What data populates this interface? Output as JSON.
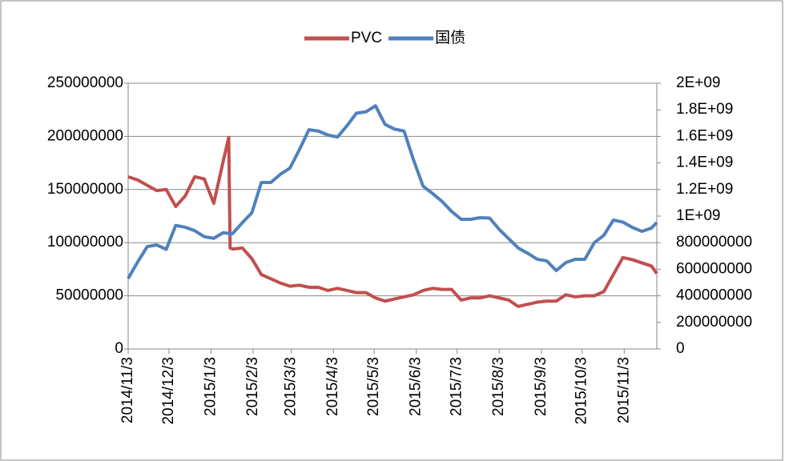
{
  "chart_data": {
    "type": "line",
    "x": [
      "2014/11/3",
      "2014/11/10",
      "2014/11/17",
      "2014/11/24",
      "2014/12/1",
      "2014/12/8",
      "2014/12/15",
      "2014/12/22",
      "2014/12/29",
      "2015/1/5",
      "2015/1/12",
      "2015/1/16",
      "2015/1/17",
      "2015/1/19",
      "2015/1/26",
      "2015/2/2",
      "2015/2/9",
      "2015/2/16",
      "2015/2/23",
      "2015/3/2",
      "2015/3/9",
      "2015/3/16",
      "2015/3/23",
      "2015/3/30",
      "2015/4/6",
      "2015/4/13",
      "2015/4/20",
      "2015/4/27",
      "2015/5/4",
      "2015/5/11",
      "2015/5/18",
      "2015/5/25",
      "2015/6/1",
      "2015/6/8",
      "2015/6/15",
      "2015/6/22",
      "2015/6/29",
      "2015/7/6",
      "2015/7/13",
      "2015/7/20",
      "2015/7/27",
      "2015/8/3",
      "2015/8/10",
      "2015/8/17",
      "2015/8/24",
      "2015/8/31",
      "2015/9/7",
      "2015/9/14",
      "2015/9/21",
      "2015/9/28",
      "2015/10/5",
      "2015/10/12",
      "2015/10/19",
      "2015/10/26",
      "2015/11/2",
      "2015/11/9",
      "2015/11/16",
      "2015/11/23",
      "2015/11/27"
    ],
    "series": [
      {
        "name": "PVC",
        "color": "#c0504d",
        "axis": "y",
        "values": [
          162000000,
          159000000,
          154000000,
          149000000,
          150000000,
          134000000,
          144000000,
          162000000,
          160000000,
          137000000,
          177000000,
          199000000,
          95000000,
          94000000,
          95000000,
          85000000,
          70000000,
          66000000,
          62000000,
          59000000,
          60000000,
          58000000,
          58000000,
          55000000,
          57000000,
          55000000,
          53000000,
          53000000,
          48000000,
          45000000,
          47000000,
          49000000,
          51000000,
          55000000,
          57000000,
          56000000,
          56000000,
          46000000,
          48000000,
          48000000,
          50000000,
          48000000,
          46000000,
          40000000,
          42000000,
          44000000,
          45000000,
          45000000,
          51000000,
          49000000,
          50000000,
          50000000,
          54000000,
          70000000,
          86000000,
          84000000,
          81000000,
          78000000,
          71000000
        ]
      },
      {
        "name": "国债",
        "color": "#4f81bd",
        "axis": "y2",
        "values": [
          530000000,
          655000000,
          770000000,
          783000000,
          750000000,
          930000000,
          916000000,
          890000000,
          845000000,
          833000000,
          875000000,
          870000000,
          860000000,
          870000000,
          950000000,
          1025000000,
          1253000000,
          1253000000,
          1315000000,
          1361000000,
          1500000000,
          1650000000,
          1640000000,
          1610000000,
          1595000000,
          1680000000,
          1775000000,
          1785000000,
          1830000000,
          1690000000,
          1655000000,
          1640000000,
          1422000000,
          1225000000,
          1170000000,
          1110000000,
          1035000000,
          976000000,
          976000000,
          988000000,
          985000000,
          900000000,
          830000000,
          760000000,
          720000000,
          675000000,
          663000000,
          590000000,
          650000000,
          675000000,
          675000000,
          800000000,
          855000000,
          970000000,
          955000000,
          915000000,
          885000000,
          910000000,
          952000000
        ]
      }
    ],
    "xlim": [
      "2014/11/3",
      "2015/11/27"
    ],
    "xticks": [
      "2014/11/3",
      "2014/12/3",
      "2015/1/3",
      "2015/2/3",
      "2015/3/3",
      "2015/4/3",
      "2015/5/3",
      "2015/6/3",
      "2015/7/3",
      "2015/8/3",
      "2015/9/3",
      "2015/10/3",
      "2015/11/3"
    ],
    "ylim": [
      0,
      250000000
    ],
    "yticks": [
      0,
      50000000,
      100000000,
      150000000,
      200000000,
      250000000
    ],
    "y2lim": [
      0,
      2000000000
    ],
    "y2ticks": [
      0,
      200000000,
      400000000,
      600000000,
      800000000,
      {
        "value": 1000000000,
        "label": "1E+09"
      },
      {
        "value": 1200000000,
        "label": "1.2E+09"
      },
      {
        "value": 1400000000,
        "label": "1.4E+09"
      },
      {
        "value": 1600000000,
        "label": "1.6E+09"
      },
      {
        "value": 1800000000,
        "label": "1.8E+09"
      },
      {
        "value": 2000000000,
        "label": "2E+09"
      }
    ],
    "grid": true,
    "legend": "top"
  }
}
